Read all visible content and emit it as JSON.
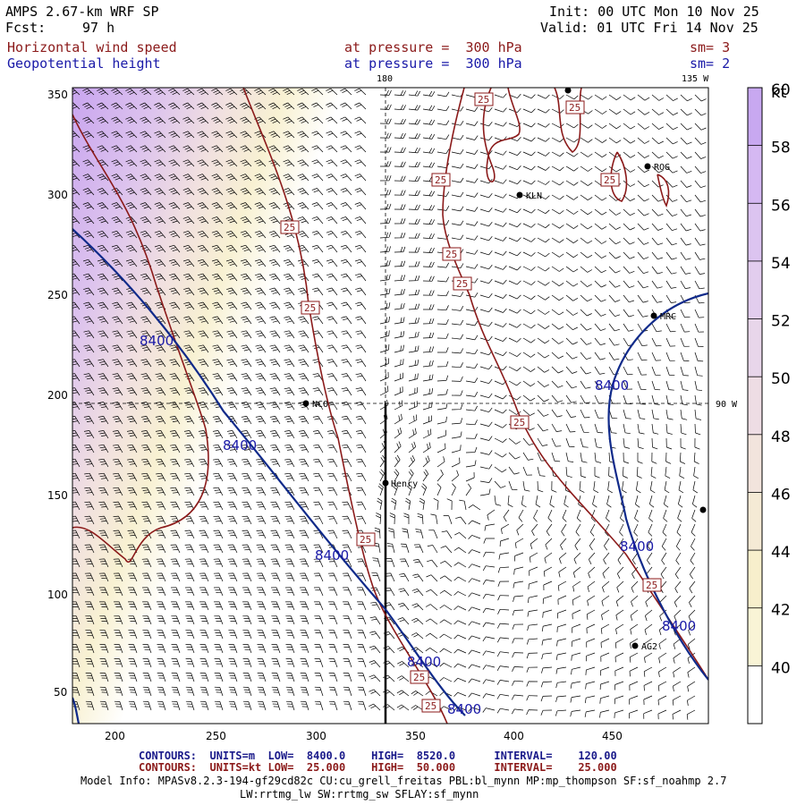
{
  "header": {
    "model": "AMPS 2.67-km WRF SP",
    "fcst_label": "Fcst:",
    "fcst_value": "97 h",
    "init": "Init: 00 UTC Mon 10 Nov 25",
    "valid": "Valid: 01 UTC Fri 14 Nov 25",
    "field1_name": "Horizontal wind speed",
    "field1_level": "at pressure =  300 hPa",
    "field1_sm": "sm= 3",
    "field2_name": "Geopotential height",
    "field2_level": "at pressure =  300 hPa",
    "field2_sm": "sm= 2"
  },
  "map": {
    "top_labels": [
      "180",
      "135 W"
    ],
    "side_label": "90 W",
    "x_ticks": [
      "200",
      "250",
      "300",
      "350",
      "400",
      "450"
    ],
    "y_ticks": [
      "350",
      "300",
      "250",
      "200",
      "150",
      "100",
      "50"
    ],
    "stations": [
      "NCO",
      "Henry",
      "KLN",
      "ROG",
      "MRC",
      "AG2"
    ],
    "height_labels": [
      "8400",
      "8400",
      "8400",
      "8400",
      "8400",
      "8400",
      "8400",
      "8400"
    ],
    "speed_labels": [
      "25",
      "25",
      "25",
      "25",
      "25",
      "25",
      "25",
      "25",
      "25",
      "25",
      "25",
      "25",
      "25"
    ]
  },
  "colorbar": {
    "unit": "kt",
    "labels": [
      "60",
      "58",
      "56",
      "54",
      "52",
      "50",
      "48",
      "46",
      "44",
      "42",
      "40"
    ],
    "colors": [
      "#c8a8f0",
      "#d5b8f2",
      "#dcc4f0",
      "#e2cdee",
      "#e8d6ea",
      "#eedde4",
      "#f2e4dd",
      "#f5ead5",
      "#f7efcc",
      "#f9f4d6",
      "#ffffff"
    ]
  },
  "footer": {
    "line1_label": "CONTOURS:",
    "line1_units": "UNITS=m",
    "line1_low": "LOW=  8400.0",
    "line1_high": "HIGH=  8520.0",
    "line1_interval": "INTERVAL=    120.00",
    "line2_label": "CONTOURS:",
    "line2_units": "UNITS=kt",
    "line2_low": "LOW=  25.000",
    "line2_high": "HIGH=  50.000",
    "line2_interval": "INTERVAL=    25.000",
    "model_info": "Model Info: MPASv8.2.3-194-gf29cd82c CU:cu_grell_freitas PBL:bl_mynn MP:mp_thompson SF:sf_noahmp 2.7",
    "model_info2": "LW:rrtmg_lw SW:rrtmg_sw SFLAY:sf_mynn"
  },
  "colors": {
    "height_contour": "#102a8a",
    "speed_contour": "#8b1a1a",
    "barb": "#000000"
  }
}
